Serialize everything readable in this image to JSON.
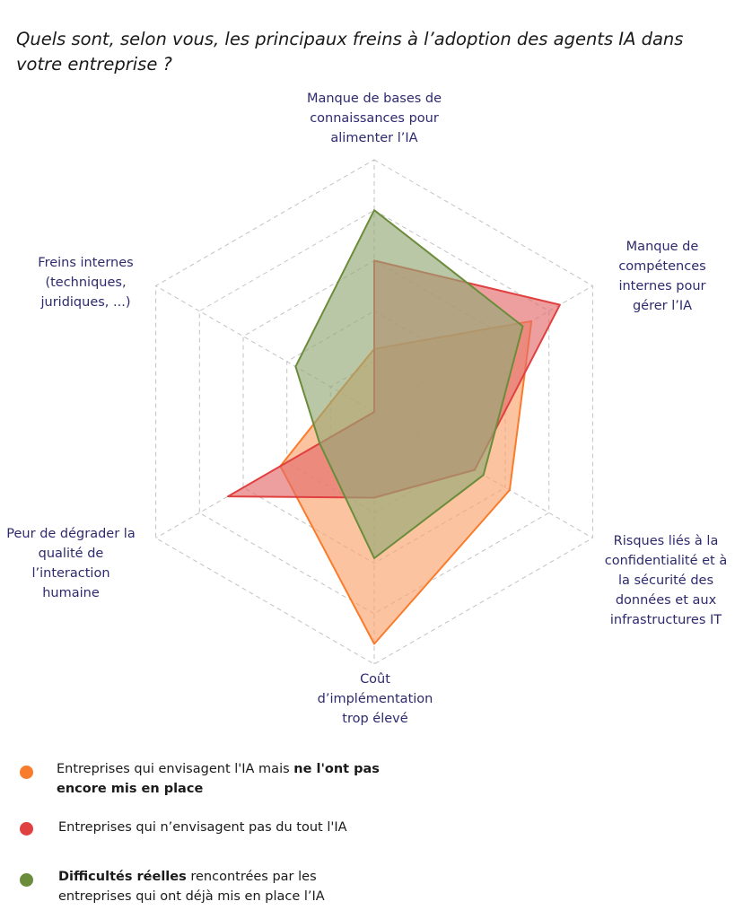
{
  "chart_data": {
    "type": "radar",
    "title": "Quels sont, selon vous, les principaux freins à l’adoption des agents IA dans votre entreprise ?",
    "axes": [
      "Manque de bases de connaissances pour alimenter l’IA",
      "Manque de compétences internes pour gérer l’IA",
      "Risques liés à la confidentialité et à la sécurité des données et aux infrastructures IT",
      "Coût d’implémentation trop élevé",
      "Peur de dégrader la qualité de l’interaction humaine",
      "Freins internes (techniques, juridiques, ...)"
    ],
    "grid_levels": 5,
    "grid_style": "dashed hexagon",
    "max": 1.0,
    "series": [
      {
        "key": "envisagent",
        "color": "#f97c2c",
        "fill": "#fba36d",
        "values": [
          0.25,
          0.72,
          0.62,
          0.92,
          0.43,
          0.16
        ]
      },
      {
        "key": "pas_du_tout",
        "color": "#e0403f",
        "fill": "#e46b6b",
        "values": [
          0.6,
          0.85,
          0.46,
          0.34,
          0.67,
          0.0
        ]
      },
      {
        "key": "reelles",
        "color": "#6b8c3a",
        "fill": "#93a977",
        "values": [
          0.8,
          0.68,
          0.5,
          0.58,
          0.25,
          0.36
        ]
      }
    ]
  },
  "axis_labels": [
    "Manque de bases de\nconnaissances pour\nalimenter l’IA",
    "Manque de\ncompétences\ninternes pour\ngérer l’IA",
    "Risques liés à la\nconfidentialité et à\nla sécurité des\ndonnées et aux\ninfrastructures IT",
    "Coût\nd’implémentation\ntrop élevé",
    "Peur de dégrader la\nqualité de\nl’interaction\nhumaine",
    "Freins internes\n(techniques,\njuridiques, ...)"
  ],
  "legend": [
    {
      "color": "#f97c2c",
      "pre": "Entreprises qui envisagent l'IA mais ",
      "bold": "ne l'ont pas encore mis en place",
      "post": ""
    },
    {
      "color": "#e0403f",
      "pre": "Entreprises qui n’envisagent pas du tout l'IA",
      "bold": "",
      "post": ""
    },
    {
      "color": "#6b8c3a",
      "pre": "",
      "bold": "Difficultés réelles",
      "post": " rencontrées par les entreprises qui ont déjà mis en place l’IA"
    }
  ]
}
